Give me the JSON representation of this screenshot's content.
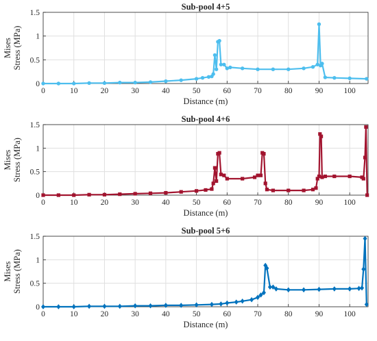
{
  "chart_data": [
    {
      "type": "line",
      "title": "Sub-pool 4+5",
      "xlabel": "Distance (m)",
      "ylabel": [
        "Mises",
        "Stress (MPa)"
      ],
      "xlim": [
        0,
        106
      ],
      "ylim": [
        0,
        1.5
      ],
      "xticks": [
        "0",
        "10",
        "20",
        "30",
        "40",
        "50",
        "60",
        "70",
        "80",
        "90",
        "100"
      ],
      "yticks": [
        "0",
        "0.5",
        "1",
        "1.5"
      ],
      "grid": true,
      "color": "#4DBEEE",
      "marker": "circle",
      "series": [
        {
          "x": [
            0,
            5,
            10,
            15,
            20,
            25,
            30,
            35,
            40,
            45,
            50,
            52,
            54,
            55,
            55.5,
            56,
            56.5,
            57,
            57.5,
            58,
            59,
            60,
            61,
            65,
            70,
            75,
            80,
            85,
            88,
            89.5,
            90,
            90.5,
            91,
            92,
            95,
            100,
            105.5
          ],
          "y": [
            0,
            0,
            0,
            0.01,
            0.01,
            0.02,
            0.02,
            0.03,
            0.05,
            0.07,
            0.1,
            0.12,
            0.14,
            0.15,
            0.2,
            0.6,
            0.3,
            0.88,
            0.9,
            0.4,
            0.4,
            0.32,
            0.34,
            0.32,
            0.3,
            0.3,
            0.3,
            0.32,
            0.35,
            0.4,
            1.25,
            0.38,
            0.42,
            0.13,
            0.12,
            0.11,
            0.1
          ]
        }
      ]
    },
    {
      "type": "line",
      "title": "Sub-pool 4+6",
      "xlabel": "Distance (m)",
      "ylabel": [
        "Mises",
        "Stress (MPa)"
      ],
      "xlim": [
        0,
        106
      ],
      "ylim": [
        0,
        1.5
      ],
      "xticks": [
        "0",
        "10",
        "20",
        "30",
        "40",
        "50",
        "60",
        "70",
        "80",
        "90",
        "100"
      ],
      "yticks": [
        "0",
        "0.5",
        "1",
        "1.5"
      ],
      "grid": true,
      "color": "#A2142F",
      "marker": "square",
      "series": [
        {
          "x": [
            0,
            5,
            10,
            15,
            20,
            25,
            30,
            35,
            40,
            45,
            50,
            53,
            55,
            55.5,
            56,
            56.5,
            57,
            57.5,
            58,
            59,
            60,
            65,
            69,
            70,
            71,
            71.5,
            72,
            72.5,
            73,
            75,
            80,
            85,
            88,
            89,
            89.5,
            90,
            90.3,
            90.7,
            91,
            92,
            95,
            100,
            104,
            104.5,
            105,
            105.3,
            105.7
          ],
          "y": [
            0,
            0,
            0,
            0.01,
            0.01,
            0.02,
            0.03,
            0.04,
            0.05,
            0.07,
            0.09,
            0.11,
            0.13,
            0.25,
            0.58,
            0.3,
            0.88,
            0.9,
            0.44,
            0.42,
            0.35,
            0.35,
            0.38,
            0.42,
            0.42,
            0.9,
            0.88,
            0.25,
            0.12,
            0.1,
            0.1,
            0.1,
            0.12,
            0.15,
            0.35,
            0.4,
            1.3,
            1.25,
            0.38,
            0.4,
            0.4,
            0.4,
            0.38,
            0.35,
            0.8,
            1.45,
            0
          ]
        }
      ]
    },
    {
      "type": "line",
      "title": "Sub-pool 5+6",
      "xlabel": "Distance (m)",
      "ylabel": [
        "Mises",
        "Stress (MPa)"
      ],
      "xlim": [
        0,
        106
      ],
      "ylim": [
        0,
        1.5
      ],
      "xticks": [
        "0",
        "10",
        "20",
        "30",
        "40",
        "50",
        "60",
        "70",
        "80",
        "90",
        "100"
      ],
      "yticks": [
        "0",
        "0.5",
        "1",
        "1.5"
      ],
      "grid": true,
      "color": "#0072BD",
      "marker": "diamond",
      "series": [
        {
          "x": [
            0,
            5,
            10,
            15,
            20,
            25,
            30,
            35,
            40,
            45,
            50,
            55,
            58,
            60,
            63,
            65,
            68,
            70,
            71,
            72,
            72.5,
            73,
            74,
            75,
            76,
            80,
            85,
            90,
            95,
            100,
            103,
            104,
            104.5,
            105,
            105.5
          ],
          "y": [
            0,
            0,
            0,
            0.01,
            0.01,
            0.01,
            0.02,
            0.02,
            0.03,
            0.03,
            0.04,
            0.05,
            0.06,
            0.08,
            0.1,
            0.12,
            0.15,
            0.2,
            0.25,
            0.3,
            0.88,
            0.82,
            0.42,
            0.42,
            0.38,
            0.36,
            0.36,
            0.37,
            0.38,
            0.38,
            0.39,
            0.4,
            0.8,
            1.45,
            0.05
          ]
        }
      ]
    }
  ]
}
